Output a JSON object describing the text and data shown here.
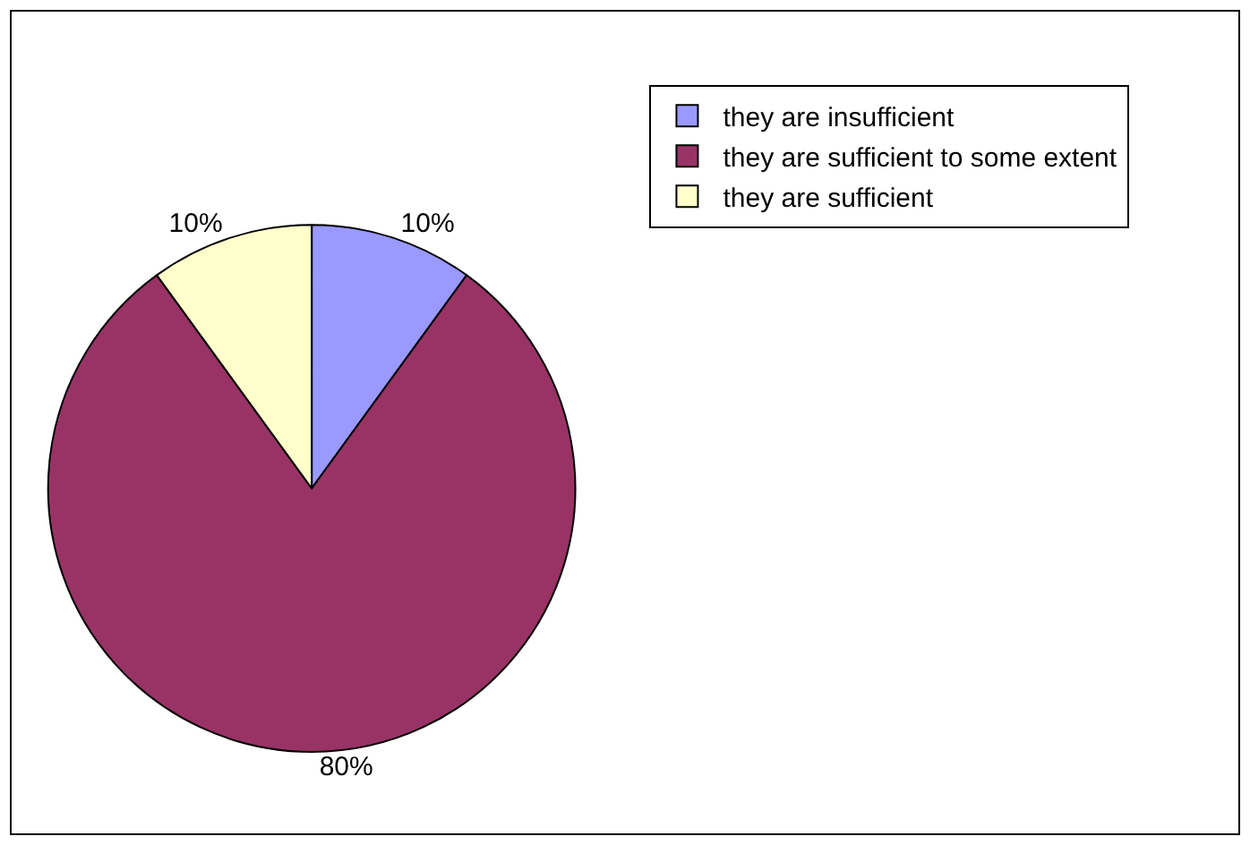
{
  "chart_data": {
    "type": "pie",
    "categories": [
      "they are insufficient",
      "they are sufficient to some extent",
      "they are sufficient"
    ],
    "values": [
      10,
      80,
      10
    ],
    "value_labels": [
      "10%",
      "80%",
      "10%"
    ],
    "colors": [
      "#9999ff",
      "#993366",
      "#ffffcc"
    ],
    "legend": "right"
  }
}
